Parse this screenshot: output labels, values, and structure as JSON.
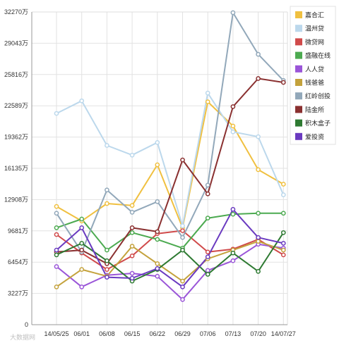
{
  "chart_data": {
    "type": "line",
    "title": "",
    "xlabel": "",
    "ylabel": "",
    "categories": [
      "14/05/25",
      "06/01",
      "06/08",
      "06/15",
      "06/22",
      "06/29",
      "07/06",
      "07/13",
      "07/20",
      "14/07/27"
    ],
    "yticks": [
      "0",
      "3227万",
      "6454万",
      "9681万",
      "12908万",
      "16135万",
      "19362万",
      "22589万",
      "25816万",
      "29043万",
      "32270万"
    ],
    "ylim": [
      0,
      32270
    ],
    "grid": true,
    "legend_position": "right",
    "series": [
      {
        "name": "嘉合汇",
        "color": "#f0c040",
        "values": [
          12200,
          10700,
          12500,
          12300,
          16500,
          10000,
          23000,
          20500,
          16000,
          14500
        ]
      },
      {
        "name": "温州贷",
        "color": "#bcd8ec",
        "values": [
          21800,
          23100,
          18500,
          17500,
          18800,
          10200,
          23900,
          19900,
          19400,
          13400
        ]
      },
      {
        "name": "微贷网",
        "color": "#d04a4a",
        "values": [
          9300,
          7400,
          5700,
          7100,
          9400,
          9700,
          7500,
          7800,
          8800,
          7200
        ]
      },
      {
        "name": "盛融在线",
        "color": "#4caa50",
        "values": [
          10000,
          10900,
          7700,
          9500,
          8800,
          7900,
          11000,
          11400,
          11500,
          11500
        ]
      },
      {
        "name": "人人贷",
        "color": "#9a55d8",
        "values": [
          6000,
          3900,
          5100,
          5300,
          5000,
          2600,
          5600,
          6600,
          8300,
          7900
        ]
      },
      {
        "name": "钱爸爸",
        "color": "#c4a23c",
        "values": [
          3900,
          5700,
          5000,
          8100,
          6300,
          4500,
          6800,
          7700,
          8600,
          7700
        ]
      },
      {
        "name": "红岭创投",
        "color": "#92a8ba",
        "values": [
          11500,
          7500,
          13900,
          11600,
          12700,
          9000,
          14400,
          32200,
          27900,
          25200
        ]
      },
      {
        "name": "陆金所",
        "color": "#8a3030",
        "values": [
          7500,
          7700,
          6300,
          10000,
          9600,
          17000,
          13500,
          22500,
          25400,
          25000
        ]
      },
      {
        "name": "积木盒子",
        "color": "#2e7a32",
        "values": [
          7200,
          8400,
          6600,
          4500,
          5700,
          7700,
          5200,
          7400,
          5500,
          9500
        ]
      },
      {
        "name": "爱投资",
        "color": "#6a3ac0",
        "values": [
          7700,
          10000,
          4900,
          4800,
          5800,
          3900,
          7000,
          11900,
          9000,
          8400
        ]
      }
    ]
  },
  "watermark": "大数据网"
}
